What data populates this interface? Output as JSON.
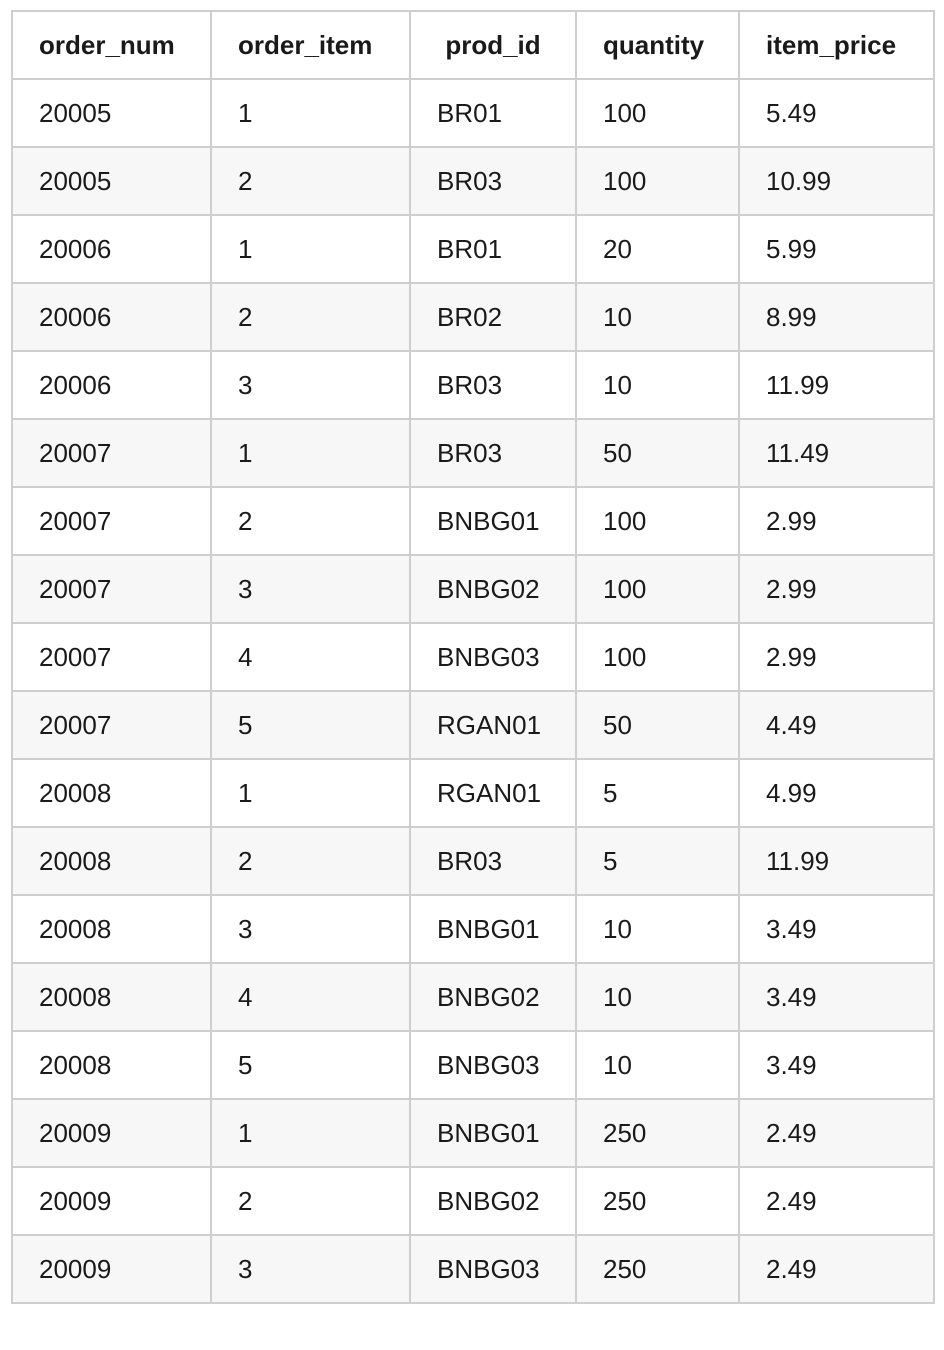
{
  "table": {
    "columns": [
      "order_num",
      "order_item",
      "prod_id",
      "quantity",
      "item_price"
    ],
    "rows": [
      [
        "20005",
        "1",
        "BR01",
        "100",
        "5.49"
      ],
      [
        "20005",
        "2",
        "BR03",
        "100",
        "10.99"
      ],
      [
        "20006",
        "1",
        "BR01",
        "20",
        "5.99"
      ],
      [
        "20006",
        "2",
        "BR02",
        "10",
        "8.99"
      ],
      [
        "20006",
        "3",
        "BR03",
        "10",
        "11.99"
      ],
      [
        "20007",
        "1",
        "BR03",
        "50",
        "11.49"
      ],
      [
        "20007",
        "2",
        "BNBG01",
        "100",
        "2.99"
      ],
      [
        "20007",
        "3",
        "BNBG02",
        "100",
        "2.99"
      ],
      [
        "20007",
        "4",
        "BNBG03",
        "100",
        "2.99"
      ],
      [
        "20007",
        "5",
        "RGAN01",
        "50",
        "4.49"
      ],
      [
        "20008",
        "1",
        "RGAN01",
        "5",
        "4.99"
      ],
      [
        "20008",
        "2",
        "BR03",
        "5",
        "11.99"
      ],
      [
        "20008",
        "3",
        "BNBG01",
        "10",
        "3.49"
      ],
      [
        "20008",
        "4",
        "BNBG02",
        "10",
        "3.49"
      ],
      [
        "20008",
        "5",
        "BNBG03",
        "10",
        "3.49"
      ],
      [
        "20009",
        "1",
        "BNBG01",
        "250",
        "2.49"
      ],
      [
        "20009",
        "2",
        "BNBG02",
        "250",
        "2.49"
      ],
      [
        "20009",
        "3",
        "BNBG03",
        "250",
        "2.49"
      ]
    ]
  }
}
